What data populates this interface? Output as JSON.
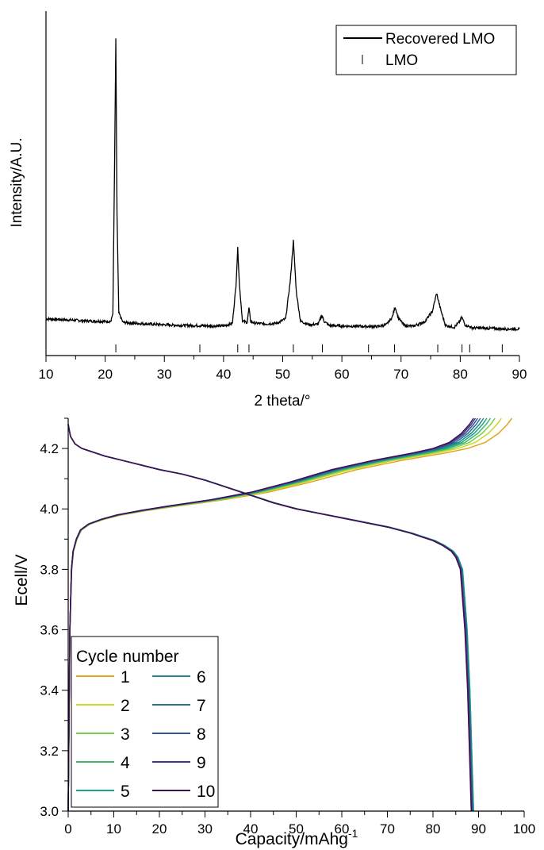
{
  "chart_data": [
    {
      "type": "line",
      "xlabel": "2 theta/°",
      "ylabel": "Intensity/A.U.",
      "xlim": [
        10,
        90
      ],
      "x_ticks": [
        10,
        20,
        30,
        40,
        50,
        60,
        70,
        80,
        90
      ],
      "y_ticks": [],
      "grid": false,
      "legend_position": "top-right",
      "series": [
        {
          "name": "Recovered LMO",
          "color": "#000000",
          "style": "line",
          "x": [
            10,
            12,
            14,
            16,
            18,
            19,
            20,
            21,
            21.3,
            21.6,
            21.8,
            22.0,
            22.3,
            23,
            25,
            28,
            30,
            33,
            36,
            38,
            40,
            41.5,
            42.1,
            42.4,
            42.7,
            43.2,
            44.0,
            44.3,
            44.6,
            45.5,
            47,
            49,
            50.5,
            51.3,
            51.8,
            52.3,
            53,
            54.5,
            56,
            56.6,
            57,
            57.8,
            60,
            63,
            66,
            67.5,
            68.5,
            69,
            69.5,
            70.5,
            72,
            74,
            75.3,
            76,
            76.7,
            77.5,
            79,
            79.8,
            80.3,
            80.8,
            82,
            85,
            88,
            90
          ],
          "y": [
            70,
            68,
            66,
            64,
            62,
            62,
            61,
            62,
            90,
            600,
            1000,
            420,
            90,
            58,
            55,
            52,
            50,
            48,
            47,
            46,
            46,
            55,
            180,
            305,
            180,
            62,
            58,
            105,
            60,
            55,
            53,
            55,
            70,
            200,
            330,
            160,
            62,
            50,
            52,
            82,
            62,
            48,
            46,
            45,
            44,
            50,
            75,
            110,
            75,
            48,
            45,
            60,
            95,
            155,
            100,
            48,
            42,
            58,
            75,
            50,
            40,
            38,
            36,
            36
          ]
        },
        {
          "name": "LMO",
          "color": "#000000",
          "style": "ticks",
          "positions": [
            21.8,
            36.0,
            42.4,
            44.3,
            51.8,
            56.7,
            64.5,
            68.9,
            76.2,
            80.3,
            81.6,
            87.1
          ]
        }
      ]
    },
    {
      "type": "line",
      "xlabel": "Capacity/mAhg",
      "xlabel_superscript": "-1",
      "ylabel": "Ecell/V",
      "xlim": [
        0,
        100
      ],
      "ylim": [
        3.0,
        4.3
      ],
      "x_ticks": [
        0,
        10,
        20,
        30,
        40,
        50,
        60,
        70,
        80,
        90,
        100
      ],
      "y_ticks": [
        "3.0",
        "3.2",
        "3.4",
        "3.6",
        "3.8",
        "4.0",
        "4.2"
      ],
      "grid": false,
      "legend_title": "Cycle number",
      "legend_position": "bottom-left",
      "charge_curve": {
        "x_fraction": [
          0,
          0.004,
          0.008,
          0.012,
          0.02,
          0.03,
          0.05,
          0.08,
          0.12,
          0.18,
          0.25,
          0.35,
          0.45,
          0.55,
          0.65,
          0.75,
          0.85,
          0.9,
          0.94,
          0.97,
          0.99,
          1.0
        ],
        "y": [
          3.0,
          3.6,
          3.8,
          3.86,
          3.9,
          3.93,
          3.95,
          3.965,
          3.98,
          3.995,
          4.01,
          4.03,
          4.055,
          4.09,
          4.13,
          4.16,
          4.185,
          4.2,
          4.22,
          4.25,
          4.28,
          4.3
        ]
      },
      "discharge_curve": {
        "x": [
          0,
          0.5,
          1.5,
          3,
          5,
          8,
          12,
          16,
          20,
          25,
          30,
          35,
          40,
          45,
          50,
          55,
          60,
          65,
          70,
          75,
          78,
          80,
          82,
          84,
          85,
          86,
          86.5,
          87,
          87.3,
          87.6,
          87.8,
          88,
          88.2,
          88.4
        ],
        "y": [
          4.28,
          4.24,
          4.215,
          4.2,
          4.19,
          4.175,
          4.16,
          4.145,
          4.13,
          4.115,
          4.095,
          4.07,
          4.045,
          4.02,
          4.0,
          3.985,
          3.97,
          3.955,
          3.94,
          3.92,
          3.905,
          3.895,
          3.88,
          3.86,
          3.84,
          3.8,
          3.7,
          3.6,
          3.5,
          3.4,
          3.3,
          3.2,
          3.1,
          3.0
        ]
      },
      "series": [
        {
          "name": "1",
          "color": "#e3a51c",
          "charge_end": 97.3,
          "discharge_end": 88.4
        },
        {
          "name": "2",
          "color": "#c8d929",
          "charge_end": 95.0,
          "discharge_end": 88.6
        },
        {
          "name": "3",
          "color": "#7cd048",
          "charge_end": 93.6,
          "discharge_end": 88.8
        },
        {
          "name": "4",
          "color": "#3fba6f",
          "charge_end": 92.6,
          "discharge_end": 88.9
        },
        {
          "name": "5",
          "color": "#21a386",
          "charge_end": 91.8,
          "discharge_end": 88.9
        },
        {
          "name": "6",
          "color": "#1f8a8c",
          "charge_end": 91.1,
          "discharge_end": 88.8
        },
        {
          "name": "7",
          "color": "#2a6f8e",
          "charge_end": 90.4,
          "discharge_end": 88.7
        },
        {
          "name": "8",
          "color": "#365490",
          "charge_end": 89.8,
          "discharge_end": 88.6
        },
        {
          "name": "9",
          "color": "#453589",
          "charge_end": 89.3,
          "discharge_end": 88.5
        },
        {
          "name": "10",
          "color": "#3e0f55",
          "charge_end": 88.9,
          "discharge_end": 88.4
        }
      ]
    }
  ]
}
